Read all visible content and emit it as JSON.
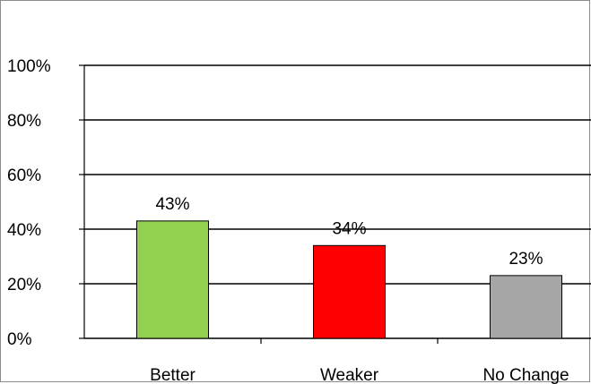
{
  "chart_data": {
    "type": "bar",
    "title": "",
    "xlabel": "",
    "ylabel": "",
    "categories": [
      "Better",
      "Weaker",
      "No Change"
    ],
    "values": [
      43,
      34,
      23
    ],
    "data_labels": [
      "43%",
      "34%",
      "23%"
    ],
    "colors": [
      "#92d050",
      "#ff0000",
      "#a6a6a6"
    ],
    "ylim": [
      0,
      100
    ],
    "yticks": [
      0,
      20,
      40,
      60,
      80,
      100
    ],
    "ytick_labels": [
      "0%",
      "20%",
      "40%",
      "60%",
      "80%",
      "100%"
    ],
    "grid": true,
    "legend": "none"
  }
}
